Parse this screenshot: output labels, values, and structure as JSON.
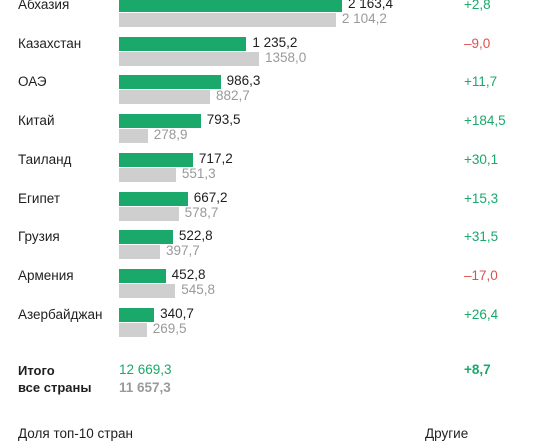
{
  "colors": {
    "current": "#1aa86b",
    "previous": "#cfcfcf",
    "positive": "#1aa86b",
    "negative": "#d9534f"
  },
  "chart_data": {
    "type": "bar",
    "orientation": "horizontal",
    "categories": [
      "Абхазия",
      "Казахстан",
      "ОАЭ",
      "Китай",
      "Таиланд",
      "Египет",
      "Грузия",
      "Армения",
      "Азербайджан"
    ],
    "series": [
      {
        "values": [
          2163.4,
          1235.2,
          986.3,
          793.5,
          717.2,
          667.2,
          522.8,
          452.8,
          340.7
        ],
        "labels": [
          "2 163,4",
          "1 235,2",
          "986,3",
          "793,5",
          "717,2",
          "667,2",
          "522,8",
          "452,8",
          "340,7"
        ]
      },
      {
        "values": [
          2104.2,
          1358.0,
          882.7,
          278.9,
          551.3,
          578.7,
          397.7,
          545.8,
          269.5
        ],
        "labels": [
          "2 104,2",
          "1358,0",
          "882,7",
          "278,9",
          "551,3",
          "578,7",
          "397,7",
          "545,8",
          "269,5"
        ]
      }
    ],
    "changes": [
      "+2,8",
      "–9,0",
      "+11,7",
      "+184,5",
      "+30,1",
      "+15,3",
      "+31,5",
      "–17,0",
      "+26,4"
    ],
    "changes_values": [
      2.8,
      -9.0,
      11.7,
      184.5,
      30.1,
      15.3,
      31.5,
      -17.0,
      26.4
    ],
    "total": {
      "label_line1": "Итого",
      "label_line2": "все страны",
      "current": "12 669,3",
      "previous": "11 657,3",
      "change": "+8,7"
    },
    "footer": {
      "left": "Доля топ-10 стран",
      "right": "Другие"
    }
  }
}
